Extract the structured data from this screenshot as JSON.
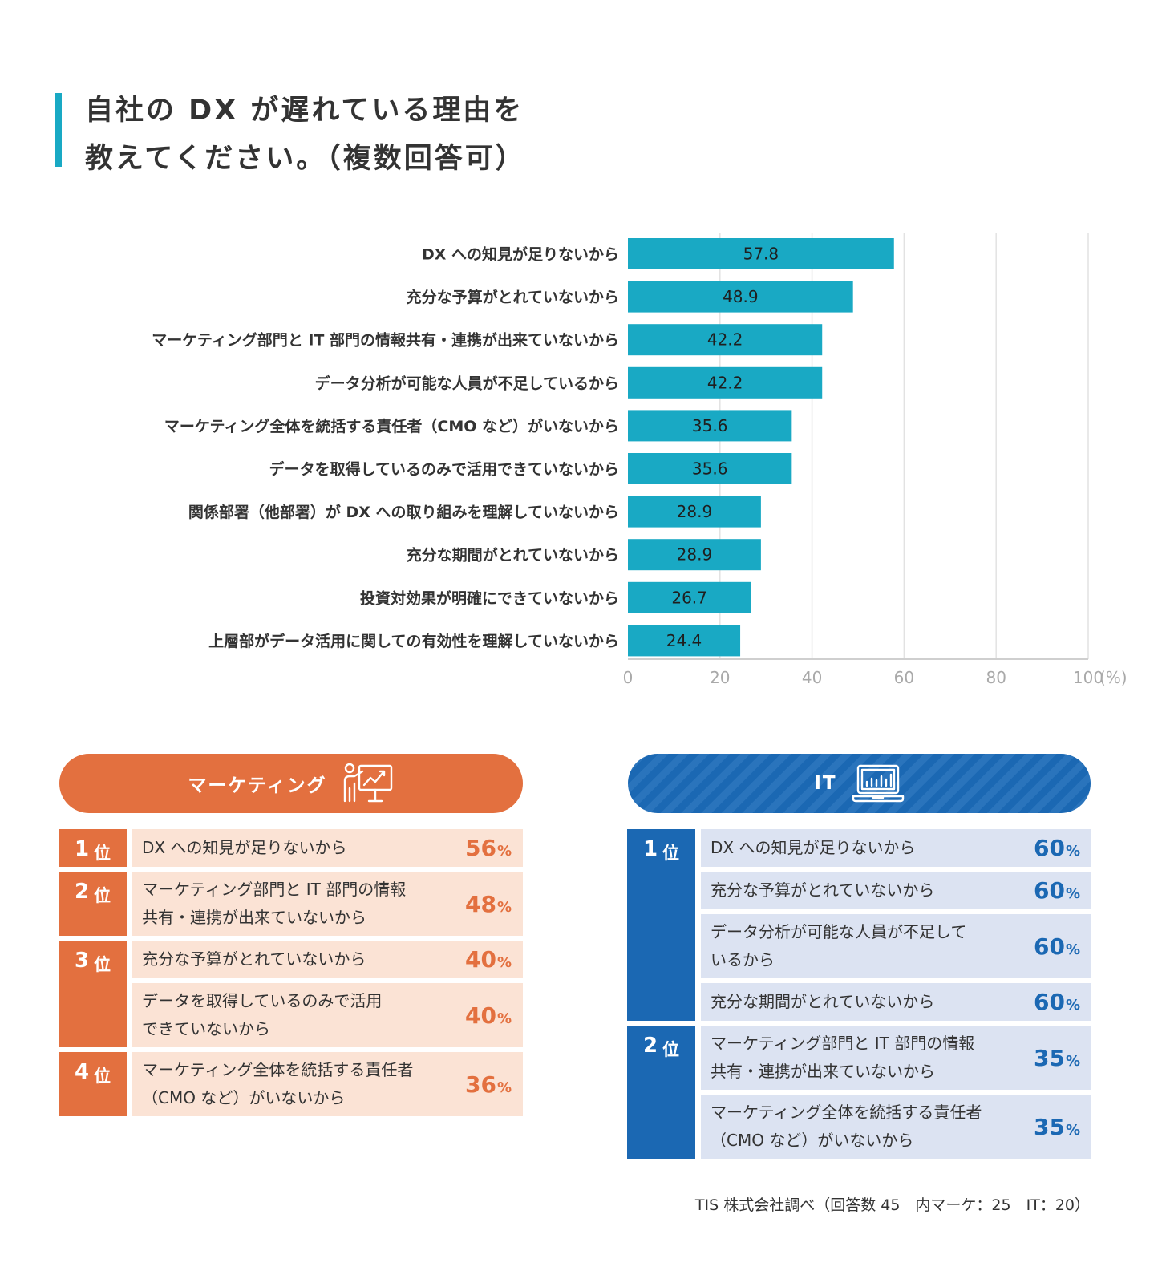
{
  "title": {
    "line1": "自社の DX が遅れている理由を",
    "line2": "教えてください。（複数回答可）"
  },
  "colors": {
    "accent": "#19a9c4",
    "bar": "#19a9c4",
    "marketing": "#e3703f",
    "marketing_bg": "#fbe3d5",
    "it": "#1b68b3",
    "it_bg": "#dce3f2"
  },
  "chart_data": {
    "type": "bar",
    "orientation": "horizontal",
    "categories": [
      "DX への知見が足りないから",
      "充分な予算がとれていないから",
      "マーケティング部門と IT 部門の情報共有・連携が出来ていないから",
      "データ分析が可能な人員が不足しているから",
      "マーケティング全体を統括する責任者（CMO など）がいないから",
      "データを取得しているのみで活用できていないから",
      "関係部署（他部署）が DX への取り組みを理解していないから",
      "充分な期間がとれていないから",
      "投資対効果が明確にできていないから",
      "上層部がデータ活用に関しての有効性を理解していないから"
    ],
    "values": [
      57.8,
      48.9,
      42.2,
      42.2,
      35.6,
      35.6,
      28.9,
      28.9,
      26.7,
      24.4
    ],
    "data_labels": [
      "57.8",
      "48.9",
      "42.2",
      "42.2",
      "35.6",
      "35.6",
      "28.9",
      "28.9",
      "26.7",
      "24.4"
    ],
    "xlim": [
      0,
      100
    ],
    "x_ticks": [
      "0",
      "20",
      "40",
      "60",
      "80",
      "100"
    ],
    "x_unit": "(%)",
    "grid": true
  },
  "marketing": {
    "label": "マーケティング",
    "icon": "presentation-chart-icon",
    "groups": [
      {
        "rank": "1",
        "suffix": "位",
        "items": [
          {
            "text": "DX への知見が足りないから",
            "pct": "56",
            "unit": "%"
          }
        ]
      },
      {
        "rank": "2",
        "suffix": "位",
        "items": [
          {
            "text": "マーケティング部門と IT 部門の情報\n共有・連携が出来ていないから",
            "pct": "48",
            "unit": "%"
          }
        ]
      },
      {
        "rank": "3",
        "suffix": "位",
        "items": [
          {
            "text": "充分な予算がとれていないから",
            "pct": "40",
            "unit": "%"
          },
          {
            "text": "データを取得しているのみで活用\nできていないから",
            "pct": "40",
            "unit": "%"
          }
        ]
      },
      {
        "rank": "4",
        "suffix": "位",
        "items": [
          {
            "text": "マーケティング全体を統括する責任者\n（CMO など）がいないから",
            "pct": "36",
            "unit": "%"
          }
        ]
      }
    ]
  },
  "it": {
    "label": "IT",
    "icon": "laptop-chart-icon",
    "groups": [
      {
        "rank": "1",
        "suffix": "位",
        "items": [
          {
            "text": "DX への知見が足りないから",
            "pct": "60",
            "unit": "%"
          },
          {
            "text": "充分な予算がとれていないから",
            "pct": "60",
            "unit": "%"
          },
          {
            "text": "データ分析が可能な人員が不足して\nいるから",
            "pct": "60",
            "unit": "%"
          },
          {
            "text": "充分な期間がとれていないから",
            "pct": "60",
            "unit": "%"
          }
        ]
      },
      {
        "rank": "2",
        "suffix": "位",
        "items": [
          {
            "text": "マーケティング部門と IT 部門の情報\n共有・連携が出来ていないから",
            "pct": "35",
            "unit": "%"
          },
          {
            "text": "マーケティング全体を統括する責任者\n（CMO など）がいないから",
            "pct": "35",
            "unit": "%"
          }
        ]
      }
    ]
  },
  "source": "TIS 株式会社調べ（回答数 45　内マーケ：25　IT：20）"
}
